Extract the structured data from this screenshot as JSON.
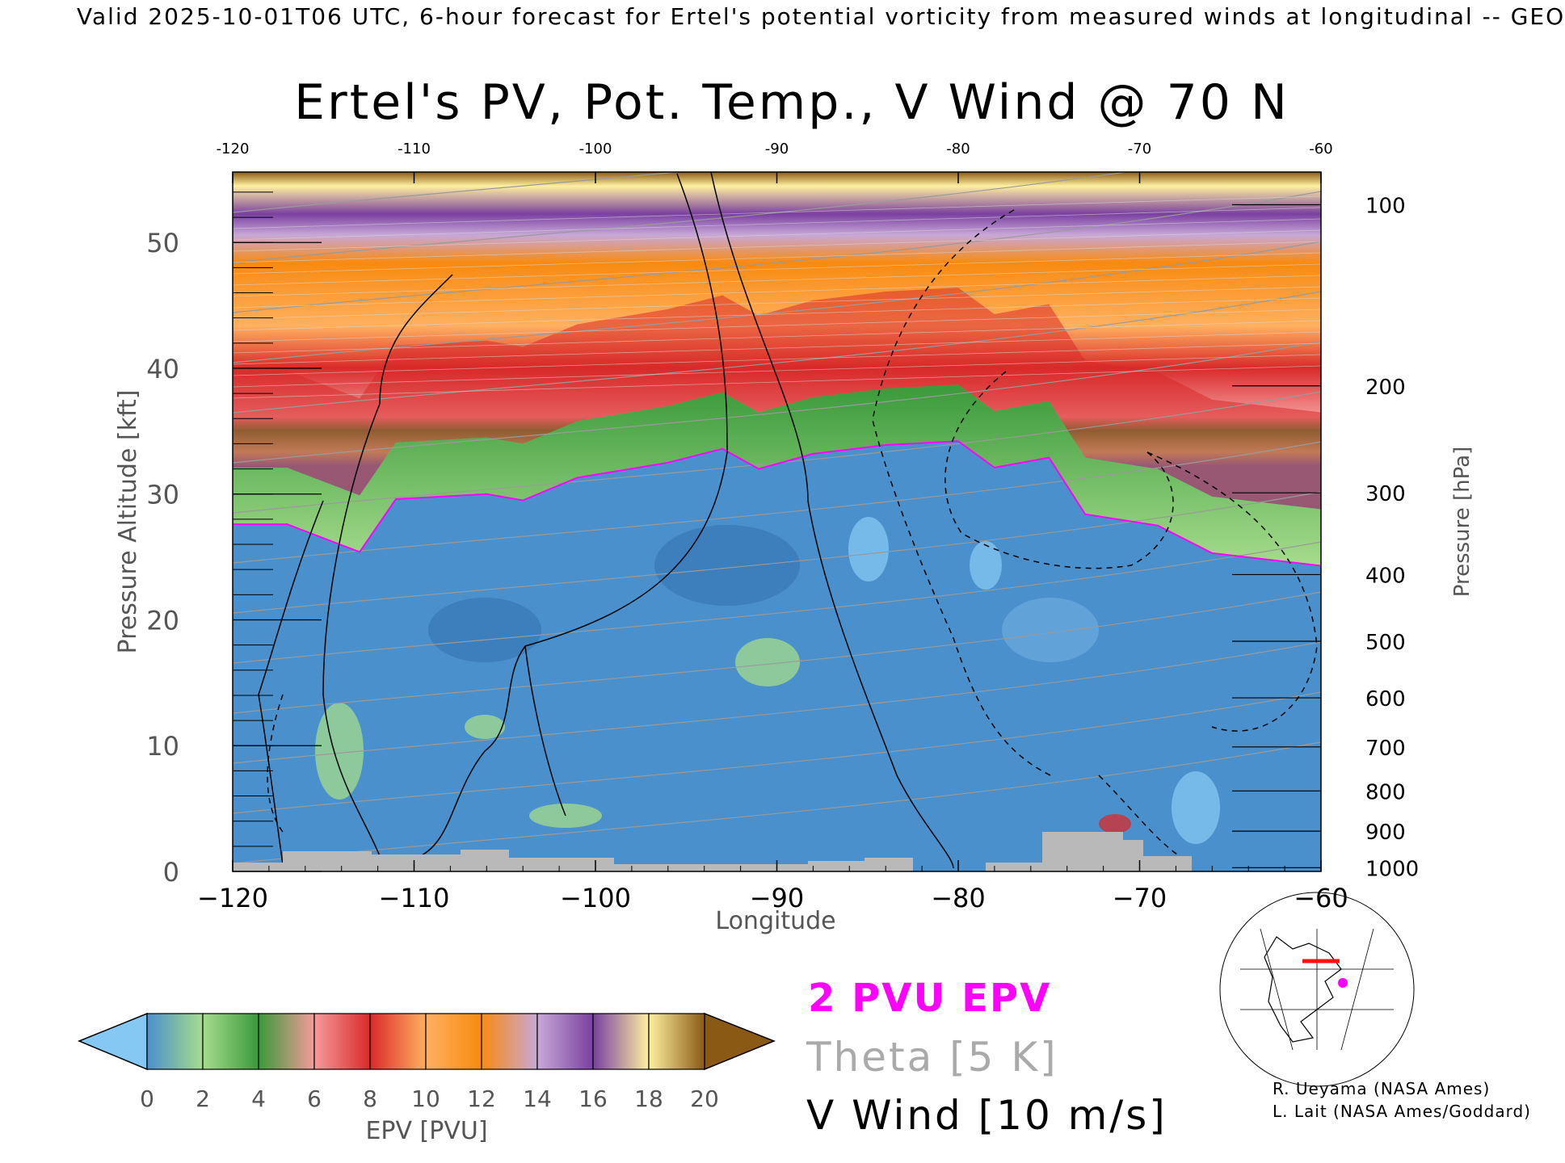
{
  "header": {
    "valid_line": "Valid 2025-10-01T06 UTC, 6-hour forecast for Ertel's potential vorticity from measured winds at longitudinal -- GEO",
    "title": "Ertel's PV, Pot. Temp., V Wind @ 70 N"
  },
  "legend": {
    "epv_label": "2 PVU EPV",
    "theta_label": "Theta [5 K]",
    "wind_label": "V Wind [10 m/s]",
    "colors": {
      "epv": "#ff00ff",
      "theta": "#aaaaaa",
      "wind": "#000000"
    }
  },
  "credits": {
    "line1": "R. Ueyama (NASA Ames)",
    "line2": "L. Lait (NASA Ames/Goddard)"
  },
  "colorbar": {
    "label": "EPV [PVU]",
    "ticks": [
      "0",
      "2",
      "4",
      "6",
      "8",
      "10",
      "12",
      "14",
      "16",
      "18",
      "20"
    ],
    "colors": [
      "#85c8f4",
      "#4a90cc",
      "#a6dc8c",
      "#3a9a3a",
      "#f59a9a",
      "#d92a2a",
      "#ffb060",
      "#f88a10",
      "#c8a8d8",
      "#7a40a0",
      "#fff0a0",
      "#8a5a14"
    ]
  },
  "chart_data": {
    "type": "heatmap",
    "xlabel": "Longitude",
    "ylabel": "Pressure Altitude [kft]",
    "y2label": "Pressure [hPa]",
    "xlim": [
      -120,
      -60
    ],
    "ylim": [
      0,
      55.6
    ],
    "x_ticks": [
      "-120",
      "-110",
      "-100",
      "-90",
      "-80",
      "-70",
      "-60"
    ],
    "top_ticks": [
      "-120",
      "-110",
      "-100",
      "-90",
      "-80",
      "-70",
      "-60"
    ],
    "y_ticks": [
      "0",
      "10",
      "20",
      "30",
      "40",
      "50"
    ],
    "pressure_ticks": [
      {
        "label": "100",
        "kft": 53.0
      },
      {
        "label": "200",
        "kft": 38.6
      },
      {
        "label": "300",
        "kft": 30.1
      },
      {
        "label": "400",
        "kft": 23.6
      },
      {
        "label": "500",
        "kft": 18.3
      },
      {
        "label": "600",
        "kft": 13.8
      },
      {
        "label": "700",
        "kft": 9.9
      },
      {
        "label": "800",
        "kft": 6.4
      },
      {
        "label": "900",
        "kft": 3.2
      },
      {
        "label": "1000",
        "kft": 0.3
      }
    ],
    "tropopause_2pvu_kft": [
      {
        "lon": -120,
        "kft": 27.6
      },
      {
        "lon": -117,
        "kft": 27.6
      },
      {
        "lon": -113,
        "kft": 25.4
      },
      {
        "lon": -111,
        "kft": 29.6
      },
      {
        "lon": -106,
        "kft": 30.0
      },
      {
        "lon": -104,
        "kft": 29.5
      },
      {
        "lon": -101,
        "kft": 31.3
      },
      {
        "lon": -96,
        "kft": 32.5
      },
      {
        "lon": -93,
        "kft": 33.6
      },
      {
        "lon": -91,
        "kft": 32.0
      },
      {
        "lon": -88,
        "kft": 33.2
      },
      {
        "lon": -84,
        "kft": 33.9
      },
      {
        "lon": -80,
        "kft": 34.2
      },
      {
        "lon": -78,
        "kft": 32.1
      },
      {
        "lon": -75,
        "kft": 32.9
      },
      {
        "lon": -73,
        "kft": 28.4
      },
      {
        "lon": -69,
        "kft": 27.5
      },
      {
        "lon": -66,
        "kft": 25.3
      },
      {
        "lon": -60,
        "kft": 24.3
      }
    ],
    "theta_contours_K": [
      290,
      300,
      310,
      320,
      330,
      340,
      350,
      360,
      370,
      380,
      390,
      400,
      410,
      420
    ],
    "v_wind_contours_ms": [
      -30,
      -10,
      0,
      10,
      30,
      70
    ]
  }
}
